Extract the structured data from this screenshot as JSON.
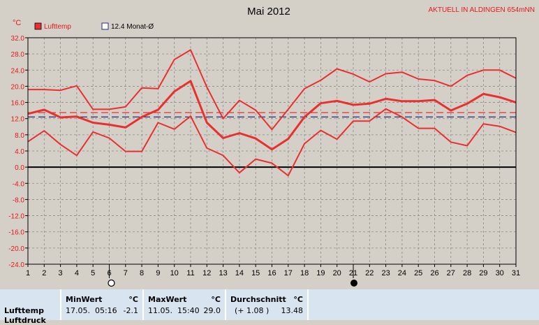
{
  "chart_data": {
    "type": "line",
    "title": "Mai 2012",
    "station_label": "AKTUELL IN ALDINGEN 654mNN",
    "y_unit": "°C",
    "ylim": [
      -24,
      32
    ],
    "y_ticks": [
      "32.0",
      "28.0",
      "24.0",
      "20.0",
      "16.0",
      "12.0",
      "8.0",
      "4.0",
      "0.0",
      "-4.0",
      "-8.0",
      "-12.0",
      "-16.0",
      "-20.0",
      "-24.0"
    ],
    "x": [
      1,
      2,
      3,
      4,
      5,
      6,
      7,
      8,
      9,
      10,
      11,
      12,
      13,
      14,
      15,
      16,
      17,
      18,
      19,
      20,
      21,
      22,
      23,
      24,
      25,
      26,
      27,
      28,
      29,
      30,
      31
    ],
    "x_tick_labels": [
      "1",
      "2",
      "3",
      "4",
      "5",
      "6",
      "7",
      "8",
      "9",
      "10",
      "11",
      "12",
      "13",
      "14",
      "15",
      "16",
      "17",
      "18",
      "19",
      "20",
      "21",
      "22",
      "23",
      "24",
      "25",
      "26",
      "27",
      "28",
      "29",
      "30",
      "31"
    ],
    "grid": true,
    "legend": [
      {
        "label": "Lufttemp",
        "color": "#e83030",
        "filled": true
      },
      {
        "label": "12.4 Monat-Ø",
        "color": "#2a2a7a",
        "filled": false
      }
    ],
    "series": [
      {
        "name": "Lufttemp",
        "role": "max",
        "values": [
          19.2,
          19.2,
          19.0,
          20.1,
          14.3,
          14.3,
          14.9,
          19.6,
          19.4,
          26.6,
          29.0,
          19.8,
          12.0,
          16.5,
          14.1,
          9.3,
          14.3,
          19.4,
          21.5,
          24.3,
          23.0,
          21.1,
          23.1,
          23.5,
          21.8,
          21.4,
          20.0,
          22.7,
          24.0,
          24.0,
          22.0
        ]
      },
      {
        "name": "Lufttemp",
        "role": "mean",
        "values": [
          13.2,
          14.2,
          12.3,
          12.5,
          11.0,
          10.5,
          9.8,
          12.4,
          14.2,
          18.7,
          21.3,
          11.0,
          7.2,
          8.4,
          7.1,
          4.4,
          7.0,
          12.4,
          15.8,
          16.4,
          15.4,
          15.7,
          16.9,
          16.3,
          16.3,
          16.6,
          14.0,
          15.7,
          18.1,
          17.3,
          16.0
        ]
      },
      {
        "name": "Lufttemp",
        "role": "min",
        "values": [
          6.3,
          9.0,
          5.6,
          2.9,
          8.7,
          7.2,
          3.9,
          3.9,
          11.0,
          9.4,
          12.6,
          4.7,
          2.9,
          -1.4,
          2.0,
          1.0,
          -2.1,
          5.8,
          9.1,
          6.9,
          11.4,
          11.4,
          14.4,
          12.4,
          9.6,
          9.6,
          6.2,
          5.3,
          10.7,
          10.1,
          8.6
        ]
      }
    ],
    "reference_lines": [
      {
        "value": 12.4,
        "color": "#2a2a7a"
      },
      {
        "value": 13.48,
        "color": "#e83030"
      }
    ],
    "zero_line": 0,
    "markers": [
      {
        "day": 6,
        "symbol": "full-moon-icon"
      },
      {
        "day": 21,
        "symbol": "new-moon-icon"
      }
    ]
  },
  "stats": {
    "row_label": "Lufttemp",
    "row_label_cut": "Luftdruck",
    "min": {
      "header": "MinWert",
      "unit": "°C",
      "datetime": "17.05.  05:16",
      "value": "-2.1"
    },
    "max": {
      "header": "MaxWert",
      "unit": "°C",
      "datetime": "11.05.  15:40",
      "value": "29.0"
    },
    "avg": {
      "header": "Durchschnitt",
      "unit": "°C",
      "diff": "(+ 1.08 )",
      "value": "13.48"
    }
  }
}
